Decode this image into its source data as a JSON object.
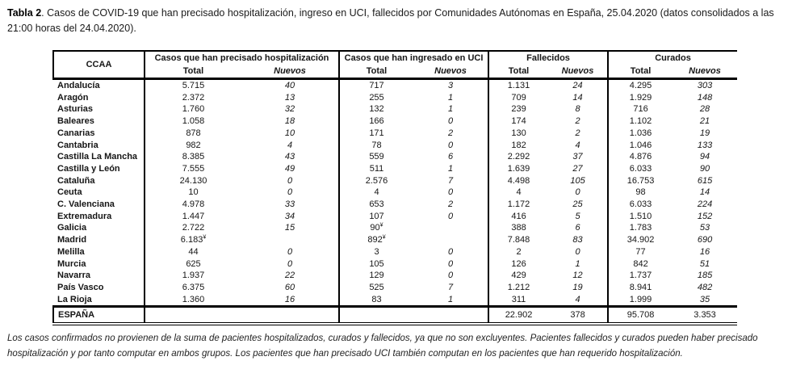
{
  "title": {
    "label": "Tabla 2",
    "text": ". Casos de COVID-19 que han precisado hospitalización, ingreso en UCI, fallecidos  por Comunidades Autónomas en España, 25.04.2020 (datos consolidados a las 21:00 horas del 24.04.2020)."
  },
  "table": {
    "ccaa_header": "CCAA",
    "groups": [
      {
        "label": "Casos que han precisado hospitalización",
        "sub": [
          "Total",
          "Nuevos"
        ]
      },
      {
        "label": "Casos que han ingresado en UCI",
        "sub": [
          "Total",
          "Nuevos"
        ]
      },
      {
        "label": "Fallecidos",
        "sub": [
          "Total",
          "Nuevos"
        ]
      },
      {
        "label": "Curados",
        "sub": [
          "Total",
          "Nuevos"
        ]
      }
    ],
    "rows": [
      {
        "ccaa": "Andalucía",
        "values": [
          "5.715",
          "40",
          "717",
          "3",
          "1.131",
          "24",
          "4.295",
          "303"
        ]
      },
      {
        "ccaa": "Aragón",
        "values": [
          "2.372",
          "13",
          "255",
          "1",
          "709",
          "14",
          "1.929",
          "148"
        ]
      },
      {
        "ccaa": "Asturias",
        "values": [
          "1.760",
          "32",
          "132",
          "1",
          "239",
          "8",
          "716",
          "28"
        ]
      },
      {
        "ccaa": "Baleares",
        "values": [
          "1.058",
          "18",
          "166",
          "0",
          "174",
          "2",
          "1.102",
          "21"
        ]
      },
      {
        "ccaa": "Canarias",
        "values": [
          "878",
          "10",
          "171",
          "2",
          "130",
          "2",
          "1.036",
          "19"
        ]
      },
      {
        "ccaa": "Cantabria",
        "values": [
          "982",
          "4",
          "78",
          "0",
          "182",
          "4",
          "1.046",
          "133"
        ]
      },
      {
        "ccaa": "Castilla La Mancha",
        "values": [
          "8.385",
          "43",
          "559",
          "6",
          "2.292",
          "37",
          "4.876",
          "94"
        ]
      },
      {
        "ccaa": "Castilla y León",
        "values": [
          "7.555",
          "49",
          "511",
          "1",
          "1.639",
          "27",
          "6.033",
          "90"
        ]
      },
      {
        "ccaa": "Cataluña",
        "values": [
          "24.130",
          "0",
          "2.576",
          "7",
          "4.498",
          "105",
          "16.753",
          "615"
        ]
      },
      {
        "ccaa": "Ceuta",
        "values": [
          "10",
          "0",
          "4",
          "0",
          "4",
          "0",
          "98",
          "14"
        ]
      },
      {
        "ccaa": "C. Valenciana",
        "values": [
          "4.978",
          "33",
          "653",
          "2",
          "1.172",
          "25",
          "6.033",
          "224"
        ]
      },
      {
        "ccaa": "Extremadura",
        "values": [
          "1.447",
          "34",
          "107",
          "0",
          "416",
          "5",
          "1.510",
          "152"
        ]
      },
      {
        "ccaa": "Galicia",
        "values": [
          "2.722",
          "15",
          "90¥",
          "",
          "388",
          "6",
          "1.783",
          "53"
        ]
      },
      {
        "ccaa": "Madrid",
        "values": [
          "6.183¥",
          "",
          "892¥",
          "",
          "7.848",
          "83",
          "34.902",
          "690"
        ]
      },
      {
        "ccaa": "Melilla",
        "values": [
          "44",
          "0",
          "3",
          "0",
          "2",
          "0",
          "77",
          "16"
        ]
      },
      {
        "ccaa": "Murcia",
        "values": [
          "625",
          "0",
          "105",
          "0",
          "126",
          "1",
          "842",
          "51"
        ]
      },
      {
        "ccaa": "Navarra",
        "values": [
          "1.937",
          "22",
          "129",
          "0",
          "429",
          "12",
          "1.737",
          "185"
        ]
      },
      {
        "ccaa": "País Vasco",
        "values": [
          "6.375",
          "60",
          "525",
          "7",
          "1.212",
          "19",
          "8.941",
          "482"
        ]
      },
      {
        "ccaa": "La Rioja",
        "values": [
          "1.360",
          "16",
          "83",
          "1",
          "311",
          "4",
          "1.999",
          "35"
        ]
      }
    ],
    "total_row": {
      "ccaa": "ESPAÑA",
      "values": [
        "",
        "",
        "",
        "",
        "22.902",
        "378",
        "95.708",
        "3.353"
      ]
    }
  },
  "footnote": "Los casos confirmados no provienen de la suma de pacientes hospitalizados, curados y fallecidos, ya que no son excluyentes. Pacientes fallecidos y curados pueden haber precisado hospitalización y por tanto computar en ambos grupos. Los pacientes que han precisado UCI también computan en los pacientes que han requerido hospitalización."
}
